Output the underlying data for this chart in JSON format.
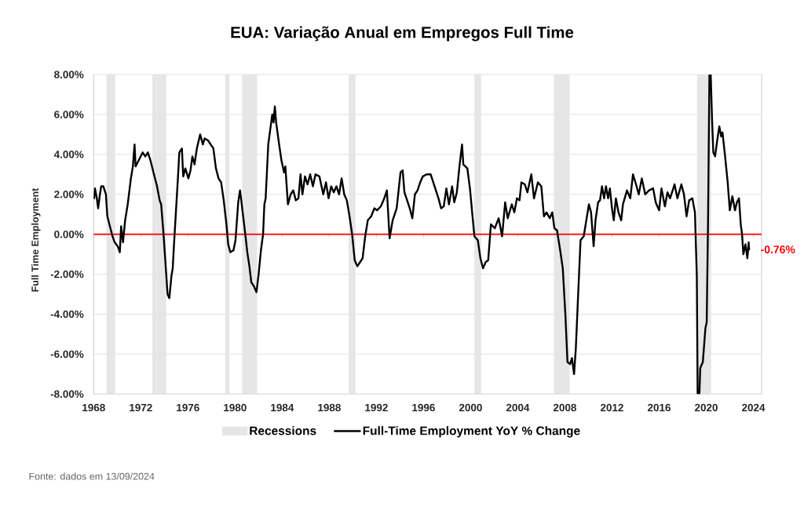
{
  "chart_data": {
    "type": "line",
    "title": "EUA: Variação Anual em Empregos Full Time",
    "ylabel": "Full Time Employment",
    "annotations": [
      {
        "text": "-0.76%",
        "x": 2023.64,
        "y": -0.76
      },
      "Fonte: dados em 13/09/2024"
    ],
    "xlim": [
      1968,
      2024.7
    ],
    "xticks": [
      1968,
      1972,
      1976,
      1980,
      1984,
      1988,
      1992,
      1996,
      2000,
      2004,
      2008,
      2012,
      2016,
      2020,
      2024
    ],
    "ylim": [
      -8,
      8
    ],
    "yticks": [
      {
        "value": -8,
        "label": "-8.00%"
      },
      {
        "value": -6,
        "label": "-6.00%"
      },
      {
        "value": -4,
        "label": "-4.00%"
      },
      {
        "value": -2,
        "label": "-2.00%"
      },
      {
        "value": 0,
        "label": "0.00%"
      },
      {
        "value": 2,
        "label": "2.00%"
      },
      {
        "value": 4,
        "label": "4.00%"
      },
      {
        "value": 6,
        "label": "6.00%"
      },
      {
        "value": 8,
        "label": "8.00%"
      }
    ],
    "grid": "y",
    "legend": "bottom",
    "ref_lines": [
      {
        "axis": "y",
        "value": 0,
        "color": "#ff0000"
      }
    ],
    "bands": [
      {
        "axis": "x",
        "from": 1969.09,
        "to": 1969.83,
        "color": "#e6e6e6",
        "label": "Recessions"
      },
      {
        "axis": "x",
        "from": 1972.98,
        "to": 1974.16,
        "color": "#e6e6e6"
      },
      {
        "axis": "x",
        "from": 1979.16,
        "to": 1979.53,
        "color": "#e6e6e6"
      },
      {
        "axis": "x",
        "from": 1980.6,
        "to": 1981.87,
        "color": "#e6e6e6"
      },
      {
        "axis": "x",
        "from": 1989.65,
        "to": 1990.23,
        "color": "#e6e6e6"
      },
      {
        "axis": "x",
        "from": 2000.32,
        "to": 2000.89,
        "color": "#e6e6e6"
      },
      {
        "axis": "x",
        "from": 2007.07,
        "to": 2008.4,
        "color": "#e6e6e6"
      },
      {
        "axis": "x",
        "from": 2019.22,
        "to": 2020.42,
        "color": "#e6e6e6"
      }
    ],
    "series": [
      {
        "name": "Full-Time Employment YoY % Change",
        "color": "#000000",
        "x": [
          1968.04,
          1968.11,
          1968.27,
          1968.38,
          1968.53,
          1968.64,
          1968.82,
          1969.04,
          1969.16,
          1969.38,
          1969.6,
          1969.78,
          1970.04,
          1970.22,
          1970.33,
          1970.49,
          1970.67,
          1970.89,
          1971.16,
          1971.33,
          1971.47,
          1971.56,
          1971.82,
          1972.16,
          1972.38,
          1972.6,
          1972.82,
          1973.16,
          1973.38,
          1973.6,
          1973.73,
          1973.93,
          1974.16,
          1974.27,
          1974.42,
          1974.6,
          1974.71,
          1974.82,
          1974.98,
          1975.16,
          1975.27,
          1975.49,
          1975.6,
          1975.78,
          1976.04,
          1976.22,
          1976.38,
          1976.56,
          1976.76,
          1977.04,
          1977.27,
          1977.42,
          1977.71,
          1977.93,
          1978.16,
          1978.38,
          1978.6,
          1978.82,
          1979.04,
          1979.27,
          1979.42,
          1979.6,
          1979.87,
          1980.04,
          1980.27,
          1980.42,
          1980.53,
          1980.71,
          1980.89,
          1981.04,
          1981.22,
          1981.38,
          1981.6,
          1981.82,
          1982.0,
          1982.2,
          1982.38,
          1982.49,
          1982.6,
          1982.82,
          1983.16,
          1983.27,
          1983.38,
          1983.49,
          1983.72,
          1983.94,
          1984.16,
          1984.27,
          1984.49,
          1984.72,
          1984.94,
          1985.16,
          1985.38,
          1985.56,
          1985.72,
          1985.94,
          1986.16,
          1986.38,
          1986.61,
          1986.83,
          1987.16,
          1987.49,
          1987.72,
          1987.94,
          1988.16,
          1988.38,
          1988.61,
          1988.83,
          1989.05,
          1989.27,
          1989.49,
          1989.72,
          1989.94,
          1990.16,
          1990.38,
          1990.61,
          1990.83,
          1991.05,
          1991.27,
          1991.56,
          1991.83,
          1992.05,
          1992.38,
          1992.67,
          1992.89,
          1993.12,
          1993.38,
          1993.72,
          1994.05,
          1994.23,
          1994.38,
          1994.61,
          1994.83,
          1995.05,
          1995.27,
          1995.49,
          1995.72,
          1995.94,
          1996.27,
          1996.61,
          1996.94,
          1997.27,
          1997.49,
          1997.72,
          1997.94,
          1998.16,
          1998.43,
          1998.61,
          1998.83,
          1999.05,
          1999.27,
          1999.38,
          1999.72,
          1999.94,
          2000.16,
          2000.32,
          2000.61,
          2000.83,
          2001.05,
          2001.27,
          2001.49,
          2001.72,
          2002.05,
          2002.38,
          2002.67,
          2002.93,
          2003.15,
          2003.49,
          2003.71,
          2003.93,
          2004.15,
          2004.31,
          2004.6,
          2004.82,
          2005.15,
          2005.38,
          2005.71,
          2006.0,
          2006.22,
          2006.44,
          2006.71,
          2006.93,
          2007.11,
          2007.33,
          2007.6,
          2007.82,
          2008.04,
          2008.22,
          2008.44,
          2008.6,
          2008.78,
          2008.93,
          2009.15,
          2009.33,
          2009.6,
          2009.82,
          2010.04,
          2010.22,
          2010.44,
          2010.6,
          2010.82,
          2010.98,
          2011.15,
          2011.33,
          2011.49,
          2011.67,
          2011.82,
          2012.0,
          2012.15,
          2012.33,
          2012.55,
          2012.78,
          2012.93,
          2013.27,
          2013.55,
          2013.78,
          2014.04,
          2014.27,
          2014.53,
          2014.82,
          2015.15,
          2015.49,
          2015.71,
          2016.0,
          2016.2,
          2016.49,
          2016.71,
          2016.93,
          2017.15,
          2017.31,
          2017.55,
          2017.89,
          2018.11,
          2018.33,
          2018.55,
          2018.82,
          2019.04,
          2019.2,
          2019.27,
          2019.42,
          2019.49,
          2019.71,
          2019.93,
          2020.04,
          2020.15,
          2020.27,
          2020.38,
          2020.49,
          2020.6,
          2020.75,
          2020.93,
          2021.11,
          2021.27,
          2021.38,
          2021.6,
          2021.82,
          2022.0,
          2022.22,
          2022.44,
          2022.6,
          2022.78,
          2022.93,
          2023.04,
          2023.15,
          2023.33,
          2023.49,
          2023.6,
          2023.64
        ],
        "values": [
          1.8,
          2.3,
          1.8,
          1.3,
          2.0,
          2.4,
          2.4,
          2.0,
          0.9,
          0.4,
          -0.1,
          -0.4,
          -0.6,
          -0.9,
          0.4,
          -0.4,
          0.7,
          1.5,
          2.8,
          3.4,
          4.5,
          3.4,
          3.7,
          4.1,
          3.9,
          4.1,
          3.7,
          2.9,
          2.4,
          1.7,
          1.5,
          0.0,
          -2.0,
          -3.0,
          -3.2,
          -2.1,
          -1.7,
          -0.5,
          1.1,
          2.9,
          4.1,
          4.3,
          2.9,
          3.3,
          2.8,
          3.2,
          3.9,
          3.5,
          4.3,
          5.0,
          4.5,
          4.8,
          4.7,
          4.5,
          4.3,
          3.3,
          2.8,
          2.6,
          1.7,
          0.5,
          -0.5,
          -0.9,
          -0.8,
          -0.3,
          1.6,
          2.2,
          1.7,
          0.8,
          -0.1,
          -0.9,
          -1.6,
          -2.4,
          -2.6,
          -2.9,
          -2.0,
          -0.8,
          0.0,
          1.5,
          1.8,
          4.5,
          6.0,
          5.6,
          6.4,
          5.6,
          4.6,
          3.7,
          3.1,
          3.4,
          1.5,
          2.0,
          2.2,
          1.7,
          1.8,
          3.0,
          2.0,
          2.9,
          2.5,
          3.0,
          2.4,
          3.0,
          2.9,
          2.0,
          2.6,
          1.8,
          2.4,
          2.1,
          2.4,
          2.0,
          2.8,
          2.0,
          1.7,
          0.9,
          0.0,
          -1.3,
          -1.6,
          -1.4,
          -1.2,
          -0.1,
          0.7,
          0.9,
          1.3,
          1.2,
          1.4,
          1.8,
          2.2,
          -0.2,
          0.7,
          1.3,
          3.1,
          3.2,
          2.1,
          1.7,
          1.3,
          0.8,
          2.0,
          2.2,
          2.6,
          2.9,
          3.0,
          3.0,
          2.4,
          1.8,
          1.3,
          1.4,
          2.3,
          1.5,
          2.4,
          1.6,
          2.1,
          3.4,
          4.5,
          3.5,
          3.3,
          2.3,
          0.9,
          -0.1,
          -0.3,
          -1.2,
          -1.7,
          -1.4,
          -1.3,
          0.5,
          0.3,
          0.8,
          -0.1,
          1.6,
          0.8,
          1.5,
          1.1,
          1.8,
          1.7,
          2.6,
          2.5,
          2.1,
          3.0,
          1.8,
          2.6,
          2.4,
          0.9,
          1.1,
          0.8,
          1.1,
          0.3,
          0.2,
          -0.8,
          -1.7,
          -4.0,
          -6.4,
          -6.5,
          -6.2,
          -7.0,
          -5.7,
          -2.7,
          -0.3,
          -0.1,
          0.7,
          1.5,
          1.1,
          -0.6,
          0.7,
          1.6,
          1.7,
          2.4,
          1.8,
          2.4,
          1.8,
          2.3,
          1.3,
          0.7,
          1.8,
          1.1,
          0.7,
          1.5,
          2.2,
          1.8,
          3.0,
          2.5,
          2.0,
          2.8,
          2.0,
          2.2,
          2.3,
          1.6,
          1.2,
          2.3,
          1.4,
          2.1,
          1.8,
          2.2,
          2.5,
          1.8,
          2.5,
          2.0,
          0.9,
          1.7,
          1.8,
          1.1,
          -2.1,
          -8,
          -8,
          -6.7,
          -6.4,
          -4.7,
          -4.4,
          0.5,
          8,
          8,
          5.8,
          4.1,
          3.9,
          4.7,
          5.4,
          4.9,
          5.1,
          3.9,
          2.6,
          1.2,
          1.9,
          1.2,
          1.6,
          1.8,
          0.5,
          0.0,
          -1.0,
          -0.5,
          -1.2,
          -0.4,
          -0.76
        ]
      }
    ]
  }
}
